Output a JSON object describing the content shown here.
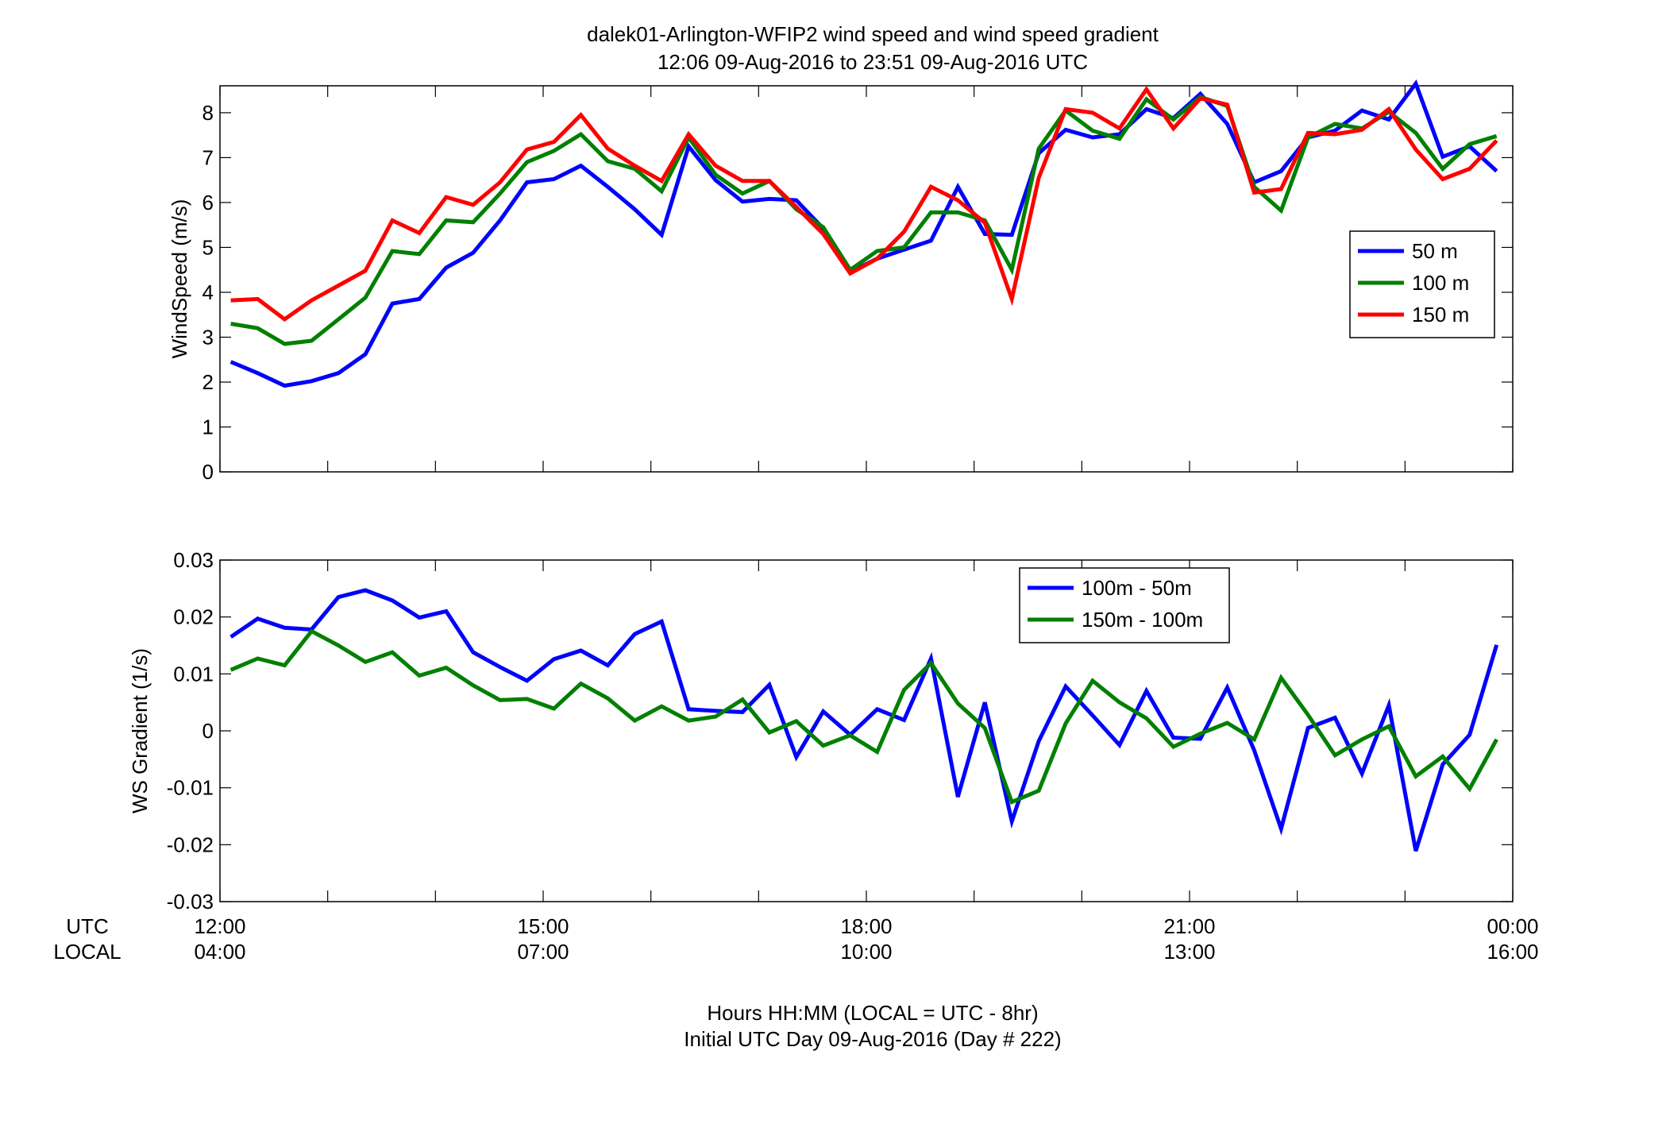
{
  "figure": {
    "title_line1": "dalek01-Arlington-WFIP2  wind speed and wind speed gradient",
    "title_line2": "12:06 09-Aug-2016 to 23:51 09-Aug-2016  UTC",
    "row_label_utc": "UTC",
    "row_label_local": "LOCAL",
    "x_utc_ticks": [
      "12:00",
      "15:00",
      "18:00",
      "21:00",
      "00:00"
    ],
    "x_local_ticks": [
      "04:00",
      "07:00",
      "10:00",
      "13:00",
      "16:00"
    ],
    "xlabel_line1": "Hours HH:MM  (LOCAL = UTC - 8hr)",
    "xlabel_line2": "Initial UTC Day 09-Aug-2016 (Day # 222)"
  },
  "chart_data": [
    {
      "type": "line",
      "ylabel": "WindSpeed (m/s)",
      "ylim": [
        0,
        8.6
      ],
      "yticks": [
        0,
        1,
        2,
        3,
        4,
        5,
        6,
        7,
        8
      ],
      "ytick_labels": [
        "0",
        "1",
        "2",
        "3",
        "4",
        "5",
        "6",
        "7",
        "8"
      ],
      "xlim": [
        "12:00",
        "00:00"
      ],
      "x_start_hour": 12.1,
      "x_step_minutes": 15,
      "legend_position": "right",
      "series": [
        {
          "name": "50 m",
          "color": "#0000ff",
          "values": [
            2.45,
            2.2,
            1.92,
            2.02,
            2.2,
            2.62,
            3.75,
            3.85,
            4.55,
            4.88,
            5.6,
            6.45,
            6.52,
            6.82,
            6.35,
            5.85,
            5.28,
            7.25,
            6.5,
            6.02,
            6.08,
            6.05,
            5.42,
            4.45,
            4.75,
            4.95,
            5.15,
            6.35,
            5.3,
            5.28,
            7.1,
            7.62,
            7.45,
            7.52,
            8.08,
            7.88,
            8.42,
            7.75,
            6.45,
            6.7,
            7.45,
            7.6,
            8.05,
            7.85,
            8.65,
            7.02,
            7.25,
            6.7
          ]
        },
        {
          "name": "100 m",
          "color": "#008000",
          "values": [
            3.3,
            3.2,
            2.85,
            2.92,
            3.4,
            3.88,
            4.92,
            4.85,
            5.6,
            5.56,
            6.2,
            6.9,
            7.15,
            7.52,
            6.92,
            6.75,
            6.25,
            7.45,
            6.62,
            6.2,
            6.48,
            5.85,
            5.45,
            4.5,
            4.92,
            5.0,
            5.78,
            5.78,
            5.6,
            4.5,
            7.2,
            8.05,
            7.6,
            7.42,
            8.3,
            7.85,
            8.35,
            8.15,
            6.35,
            5.82,
            7.45,
            7.75,
            7.65,
            8.02,
            7.55,
            6.75,
            7.3,
            7.48
          ]
        },
        {
          "name": "150 m",
          "color": "#ff0000",
          "values": [
            3.82,
            3.85,
            3.4,
            3.82,
            4.15,
            4.48,
            5.6,
            5.32,
            6.12,
            5.95,
            6.45,
            7.18,
            7.35,
            7.95,
            7.2,
            6.82,
            6.48,
            7.52,
            6.82,
            6.48,
            6.48,
            5.9,
            5.3,
            4.42,
            4.75,
            5.35,
            6.35,
            6.05,
            5.55,
            3.85,
            6.55,
            8.08,
            8.0,
            7.65,
            8.52,
            7.65,
            8.32,
            8.18,
            6.22,
            6.3,
            7.55,
            7.52,
            7.62,
            8.08,
            7.18,
            6.52,
            6.75,
            7.38
          ]
        }
      ]
    },
    {
      "type": "line",
      "ylabel": "WS Gradient (1/s)",
      "ylim": [
        -0.03,
        0.03
      ],
      "yticks": [
        -0.03,
        -0.02,
        -0.01,
        0,
        0.01,
        0.02,
        0.03
      ],
      "ytick_labels": [
        "-0.03",
        "-0.02",
        "-0.01",
        "0",
        "0.01",
        "0.02",
        "0.03"
      ],
      "xlim": [
        "12:00",
        "00:00"
      ],
      "x_start_hour": 12.1,
      "x_step_minutes": 15,
      "legend_position": "top-right",
      "series": [
        {
          "name": "100m - 50m",
          "color": "#0000ff",
          "values": [
            0.0165,
            0.0197,
            0.0181,
            0.0178,
            0.0235,
            0.0247,
            0.0229,
            0.0199,
            0.021,
            0.0138,
            0.0112,
            0.0088,
            0.0126,
            0.0141,
            0.0115,
            0.017,
            0.0192,
            0.0038,
            0.0035,
            0.0033,
            0.0081,
            -0.0046,
            0.0034,
            -0.0007,
            0.0038,
            0.0019,
            0.0127,
            -0.0116,
            0.005,
            -0.0159,
            -0.0018,
            0.0078,
            0.0027,
            -0.0025,
            0.007,
            -0.0012,
            -0.0014,
            0.0076,
            -0.0034,
            -0.0172,
            0.0005,
            0.0023,
            -0.0075,
            0.0045,
            -0.0211,
            -0.0059,
            -0.0007,
            0.0151
          ]
        },
        {
          "name": "150m - 100m",
          "color": "#008000",
          "values": [
            0.0107,
            0.0127,
            0.0115,
            0.0175,
            0.015,
            0.0121,
            0.0138,
            0.0097,
            0.0111,
            0.008,
            0.0054,
            0.0056,
            0.0039,
            0.0083,
            0.0057,
            0.0018,
            0.0043,
            0.0018,
            0.0025,
            0.0055,
            -0.0003,
            0.0017,
            -0.0026,
            -0.0008,
            -0.0037,
            0.0072,
            0.0119,
            0.0048,
            0.0005,
            -0.0125,
            -0.0105,
            0.0013,
            0.0088,
            0.005,
            0.0022,
            -0.0028,
            -0.0005,
            0.0014,
            -0.0015,
            0.0093,
            0.0028,
            -0.0043,
            -0.0015,
            0.0008,
            -0.008,
            -0.0045,
            -0.0102,
            -0.0015
          ]
        }
      ]
    }
  ]
}
